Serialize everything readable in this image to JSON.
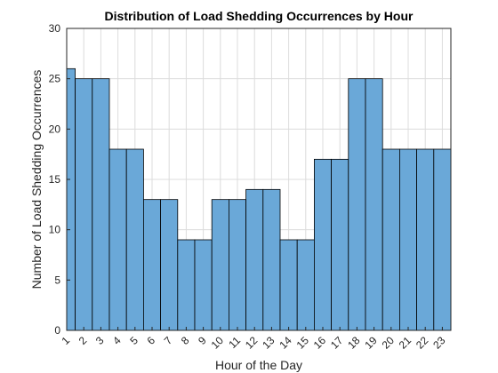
{
  "chart_data": {
    "type": "bar",
    "title": "Distribution of Load Shedding Occurrences by Hour",
    "xlabel": "Hour of the Day",
    "ylabel": "Number of Load Shedding Occurrences",
    "categories": [
      "1",
      "2",
      "3",
      "4",
      "5",
      "6",
      "7",
      "8",
      "9",
      "10",
      "11",
      "12",
      "13",
      "14",
      "15",
      "16",
      "17",
      "18",
      "19",
      "20",
      "21",
      "22",
      "23"
    ],
    "values": [
      26,
      25,
      25,
      18,
      18,
      13,
      13,
      9,
      9,
      13,
      13,
      14,
      14,
      9,
      9,
      17,
      17,
      25,
      25,
      18,
      18,
      18,
      18
    ],
    "ylim": [
      0,
      30
    ],
    "yticks": [
      "0",
      "5",
      "10",
      "15",
      "20",
      "25",
      "30"
    ],
    "grid": true,
    "bar_color": "#6aa8d8",
    "edge_color": "#000000"
  }
}
